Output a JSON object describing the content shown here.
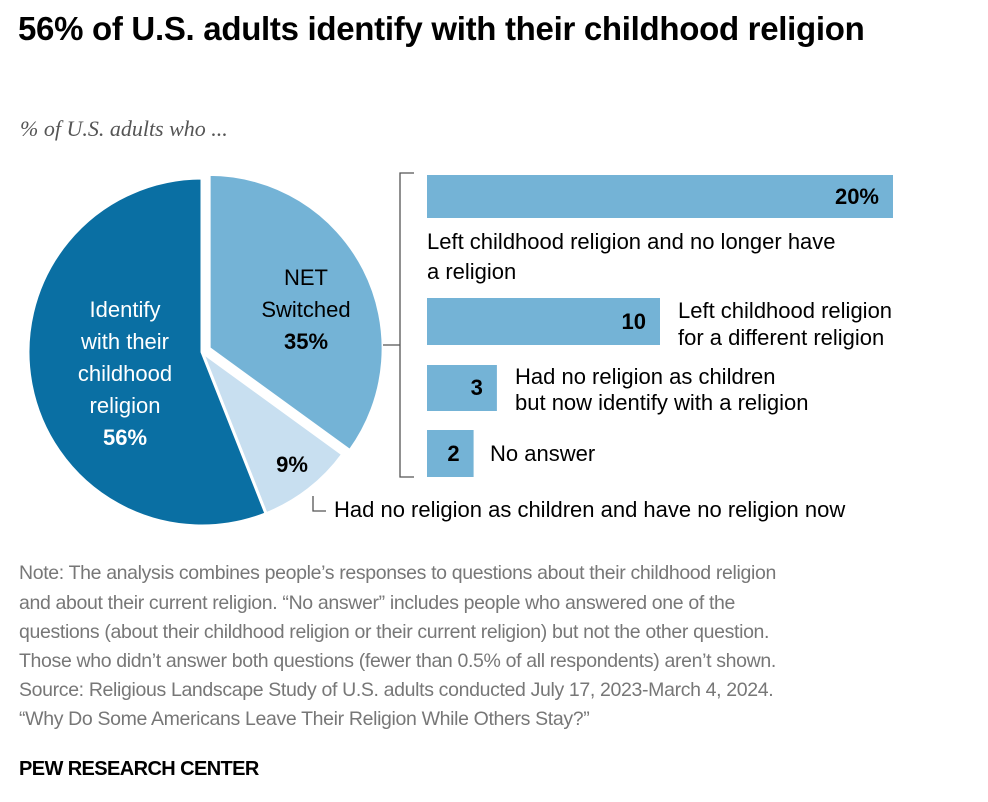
{
  "title": "56% of U.S. adults identify with their childhood religion",
  "subtitle": "% of U.S. adults who ...",
  "chart_data": [
    {
      "type": "pie",
      "slices": [
        {
          "label_lines": [
            "NET",
            "Switched"
          ],
          "value": 35,
          "value_label": "35%",
          "color": "#74b3d6"
        },
        {
          "label_lines": [
            "Had no religion as children and have no religion now"
          ],
          "value": 9,
          "value_label": "9%",
          "color": "#c8dff0"
        },
        {
          "label_lines": [
            "Identify",
            "with their",
            "childhood",
            "religion"
          ],
          "value": 56,
          "value_label": "56%",
          "color": "#0a6fa3"
        }
      ]
    },
    {
      "type": "bar",
      "orientation": "horizontal",
      "breakdown_of": "NET Switched",
      "color": "#74b3d6",
      "bars": [
        {
          "value": 20,
          "value_label": "20%",
          "label_lines": [
            "Left childhood religion and no longer have",
            "a religion"
          ]
        },
        {
          "value": 10,
          "value_label": "10",
          "label_lines": [
            "Left childhood religion",
            "for a different religion"
          ]
        },
        {
          "value": 3,
          "value_label": "3",
          "label_lines": [
            "Had no religion as children",
            "but now identify with a religion"
          ]
        },
        {
          "value": 2,
          "value_label": "2",
          "label_lines": [
            "No answer"
          ]
        }
      ]
    }
  ],
  "notes": [
    "Note: The analysis combines people’s responses to questions about their childhood religion",
    "and about their current religion. “No answer” includes people who answered one of the",
    "questions (about their childhood religion or their current religion) but not the other question.",
    "Those who didn’t answer both questions (fewer than 0.5% of all respondents) aren’t shown.",
    "Source: Religious Landscape Study of U.S. adults conducted July 17, 2023-March 4, 2024.",
    "“Why Do Some Americans Leave Their Religion While Others Stay?”"
  ],
  "source_org": "PEW RESEARCH CENTER"
}
